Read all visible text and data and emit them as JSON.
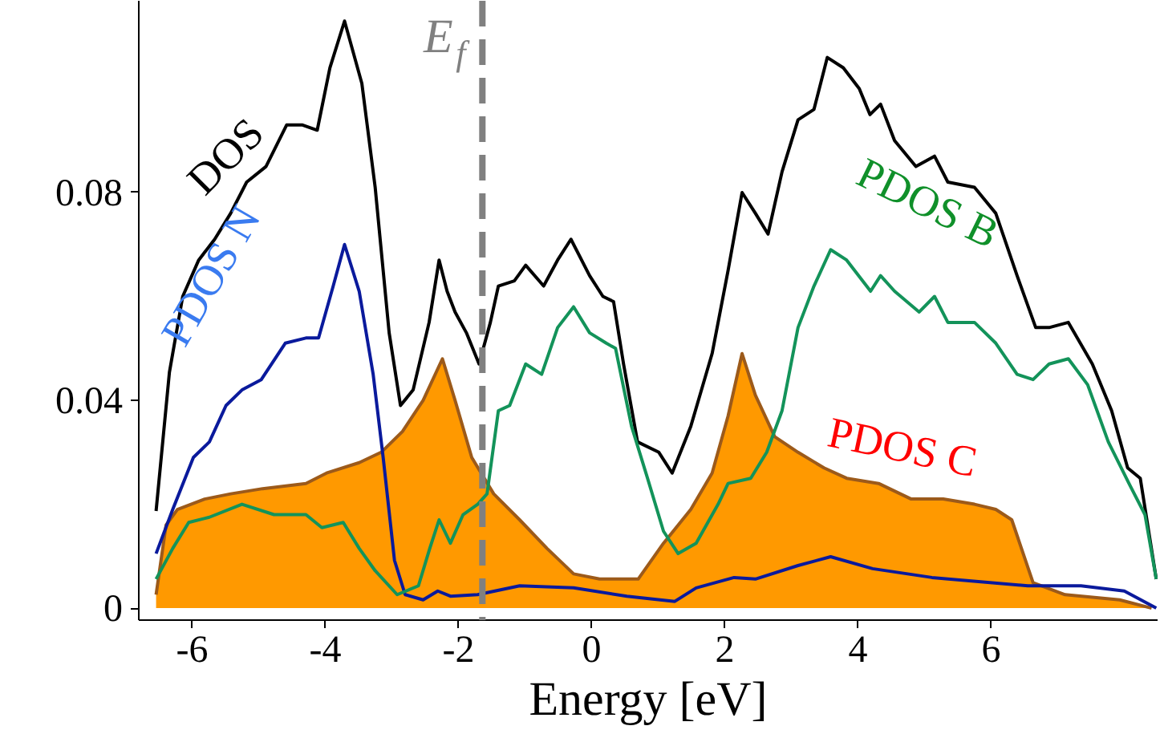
{
  "chart_data": {
    "type": "line",
    "xlabel": "Energy [eV]",
    "xlim": [
      -6.8,
      8.5
    ],
    "ylim": [
      -0.0023,
      0.1169
    ],
    "xticks": [
      -6,
      -4,
      -2,
      0,
      2,
      4,
      6
    ],
    "yticks": [
      0,
      {
        "value": 0.04,
        "label": "0.04"
      },
      {
        "value": 0.08,
        "label": "0.08"
      }
    ],
    "grid": false,
    "marker": "none",
    "line_style": "solid",
    "series": [
      {
        "name": "PDOS C",
        "type": "area",
        "color": "#ff9900",
        "x": [
          -6.54,
          -6.39,
          -6.22,
          -5.81,
          -5.42,
          -4.94,
          -4.29,
          -3.98,
          -3.49,
          -3.16,
          -2.84,
          -2.53,
          -2.24,
          -2.05,
          -1.8,
          -1.47,
          -1.08,
          -0.67,
          -0.27,
          0.12,
          0.7,
          1.08,
          1.49,
          1.81,
          2.05,
          2.26,
          2.46,
          2.75,
          3.1,
          3.49,
          3.83,
          4.31,
          4.8,
          5.28,
          5.75,
          6.07,
          6.31,
          6.63,
          7.11,
          7.93,
          8.41
        ],
        "values": [
          0.0026,
          0.016,
          0.019,
          0.021,
          0.022,
          0.023,
          0.024,
          0.026,
          0.028,
          0.03,
          0.034,
          0.04,
          0.048,
          0.04,
          0.029,
          0.022,
          0.017,
          0.0115,
          0.0066,
          0.0056,
          0.0056,
          0.0125,
          0.019,
          0.026,
          0.037,
          0.049,
          0.041,
          0.033,
          0.03,
          0.027,
          0.025,
          0.024,
          0.021,
          0.021,
          0.02,
          0.019,
          0.017,
          0.0049,
          0.0026,
          0.0016,
          0.0
        ]
      },
      {
        "name": "DOS",
        "color": "#000000",
        "x": [
          -6.54,
          -6.34,
          -6.14,
          -5.9,
          -5.66,
          -5.42,
          -5.18,
          -4.89,
          -4.58,
          -4.34,
          -4.12,
          -3.93,
          -3.71,
          -3.45,
          -3.25,
          -3.04,
          -2.87,
          -2.68,
          -2.44,
          -2.29,
          -2.17,
          -2.05,
          -1.88,
          -1.69,
          -1.52,
          -1.4,
          -1.16,
          -0.99,
          -0.72,
          -0.51,
          -0.31,
          -0.03,
          0.17,
          0.33,
          0.48,
          0.69,
          1.01,
          1.21,
          1.49,
          1.81,
          2.05,
          2.26,
          2.46,
          2.65,
          2.86,
          3.1,
          3.34,
          3.54,
          3.78,
          4.02,
          4.18,
          4.34,
          4.55,
          4.87,
          5.15,
          5.35,
          5.75,
          6.07,
          6.39,
          6.67,
          6.87,
          7.16,
          7.52,
          7.81,
          8.05,
          8.24,
          8.48
        ],
        "values": [
          0.0187,
          0.0454,
          0.06,
          0.067,
          0.071,
          0.076,
          0.082,
          0.085,
          0.093,
          0.093,
          0.092,
          0.104,
          0.113,
          0.101,
          0.081,
          0.053,
          0.039,
          0.042,
          0.055,
          0.067,
          0.061,
          0.057,
          0.053,
          0.047,
          0.055,
          0.062,
          0.063,
          0.066,
          0.062,
          0.067,
          0.071,
          0.064,
          0.06,
          0.059,
          0.047,
          0.032,
          0.03,
          0.026,
          0.035,
          0.049,
          0.065,
          0.08,
          0.076,
          0.072,
          0.084,
          0.094,
          0.096,
          0.106,
          0.104,
          0.1,
          0.095,
          0.097,
          0.09,
          0.085,
          0.087,
          0.082,
          0.081,
          0.076,
          0.064,
          0.054,
          0.054,
          0.055,
          0.047,
          0.038,
          0.027,
          0.025,
          0.0056
        ]
      },
      {
        "name": "PDOS N",
        "color": "#0a1a9c",
        "x": [
          -6.54,
          -6.29,
          -5.98,
          -5.74,
          -5.49,
          -5.25,
          -4.96,
          -4.6,
          -4.29,
          -4.1,
          -3.88,
          -3.71,
          -3.49,
          -3.28,
          -3.13,
          -2.96,
          -2.8,
          -2.53,
          -2.31,
          -2.12,
          -1.71,
          -1.08,
          -0.27,
          0.53,
          1.25,
          1.57,
          2.14,
          2.46,
          3.1,
          3.59,
          4.22,
          5.11,
          6.55,
          7.35,
          8.0,
          8.48
        ],
        "values": [
          0.0105,
          0.019,
          0.029,
          0.032,
          0.039,
          0.042,
          0.044,
          0.051,
          0.052,
          0.052,
          0.062,
          0.07,
          0.061,
          0.045,
          0.029,
          0.0092,
          0.0026,
          0.0016,
          0.0033,
          0.0023,
          0.0026,
          0.0043,
          0.0039,
          0.0023,
          0.0013,
          0.0039,
          0.0059,
          0.0056,
          0.0082,
          0.0099,
          0.0076,
          0.0059,
          0.0043,
          0.0043,
          0.0033,
          0.0
        ]
      },
      {
        "name": "PDOS B",
        "color": "#13935a",
        "x": [
          -6.54,
          -6.29,
          -6.05,
          -5.74,
          -5.25,
          -4.77,
          -4.29,
          -4.05,
          -3.73,
          -3.49,
          -3.25,
          -2.92,
          -2.6,
          -2.43,
          -2.29,
          -2.12,
          -1.93,
          -1.71,
          -1.57,
          -1.4,
          -1.23,
          -0.99,
          -0.75,
          -0.51,
          -0.27,
          -0.03,
          0.22,
          0.36,
          0.6,
          0.84,
          1.08,
          1.3,
          1.57,
          1.9,
          2.05,
          2.39,
          2.63,
          2.86,
          3.1,
          3.34,
          3.59,
          3.83,
          4.19,
          4.34,
          4.55,
          4.92,
          5.15,
          5.35,
          5.75,
          6.07,
          6.39,
          6.63,
          6.87,
          7.16,
          7.45,
          7.76,
          8.07,
          8.31,
          8.48
        ],
        "values": [
          0.0056,
          0.0115,
          0.0165,
          0.0175,
          0.02,
          0.018,
          0.018,
          0.0155,
          0.0165,
          0.0115,
          0.0072,
          0.0026,
          0.0043,
          0.0115,
          0.017,
          0.0125,
          0.018,
          0.02,
          0.022,
          0.038,
          0.039,
          0.047,
          0.045,
          0.054,
          0.058,
          0.053,
          0.051,
          0.05,
          0.035,
          0.025,
          0.0148,
          0.0105,
          0.0125,
          0.02,
          0.024,
          0.025,
          0.03,
          0.038,
          0.054,
          0.062,
          0.069,
          0.067,
          0.061,
          0.064,
          0.061,
          0.057,
          0.06,
          0.055,
          0.055,
          0.051,
          0.045,
          0.044,
          0.047,
          0.048,
          0.043,
          0.032,
          0.024,
          0.018,
          0.0056
        ]
      }
    ],
    "ref_lines": [
      {
        "axis": "x",
        "value": -1.64,
        "label": "E$_{f}$",
        "color": "#808080",
        "line_style": "dashed"
      }
    ]
  }
}
